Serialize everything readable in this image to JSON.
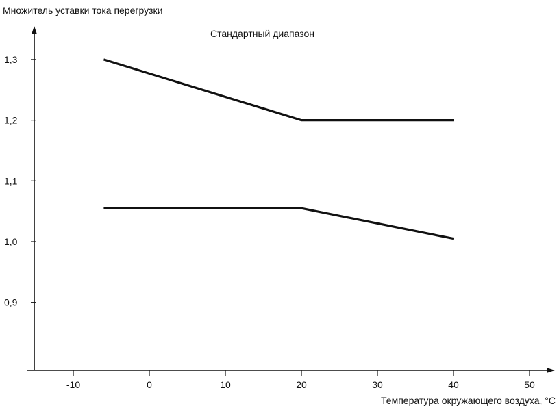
{
  "chart_data": {
    "type": "line",
    "title": "",
    "ylabel": "Множитель уставки тока перегрузки",
    "xlabel": "Температура окружающего воздуха, °С",
    "annotation": "Стандартный диапазон",
    "xlim": [
      -15,
      50
    ],
    "ylim": [
      0.8,
      1.35
    ],
    "x_ticks": [
      -10,
      0,
      10,
      20,
      30,
      40,
      50
    ],
    "x_tick_labels": [
      "-10",
      "0",
      "10",
      "20",
      "30",
      "40",
      "50"
    ],
    "y_ticks": [
      0.9,
      1.0,
      1.1,
      1.2,
      1.3
    ],
    "y_tick_labels": [
      "0,9",
      "1,0",
      "1,1",
      "1,2",
      "1,3"
    ],
    "grid": false,
    "series": [
      {
        "x": [
          -6,
          20,
          40
        ],
        "y": [
          1.3,
          1.2,
          1.2
        ]
      },
      {
        "x": [
          -6,
          20,
          40
        ],
        "y": [
          1.055,
          1.055,
          1.005
        ]
      }
    ],
    "line_color": "#111111"
  }
}
